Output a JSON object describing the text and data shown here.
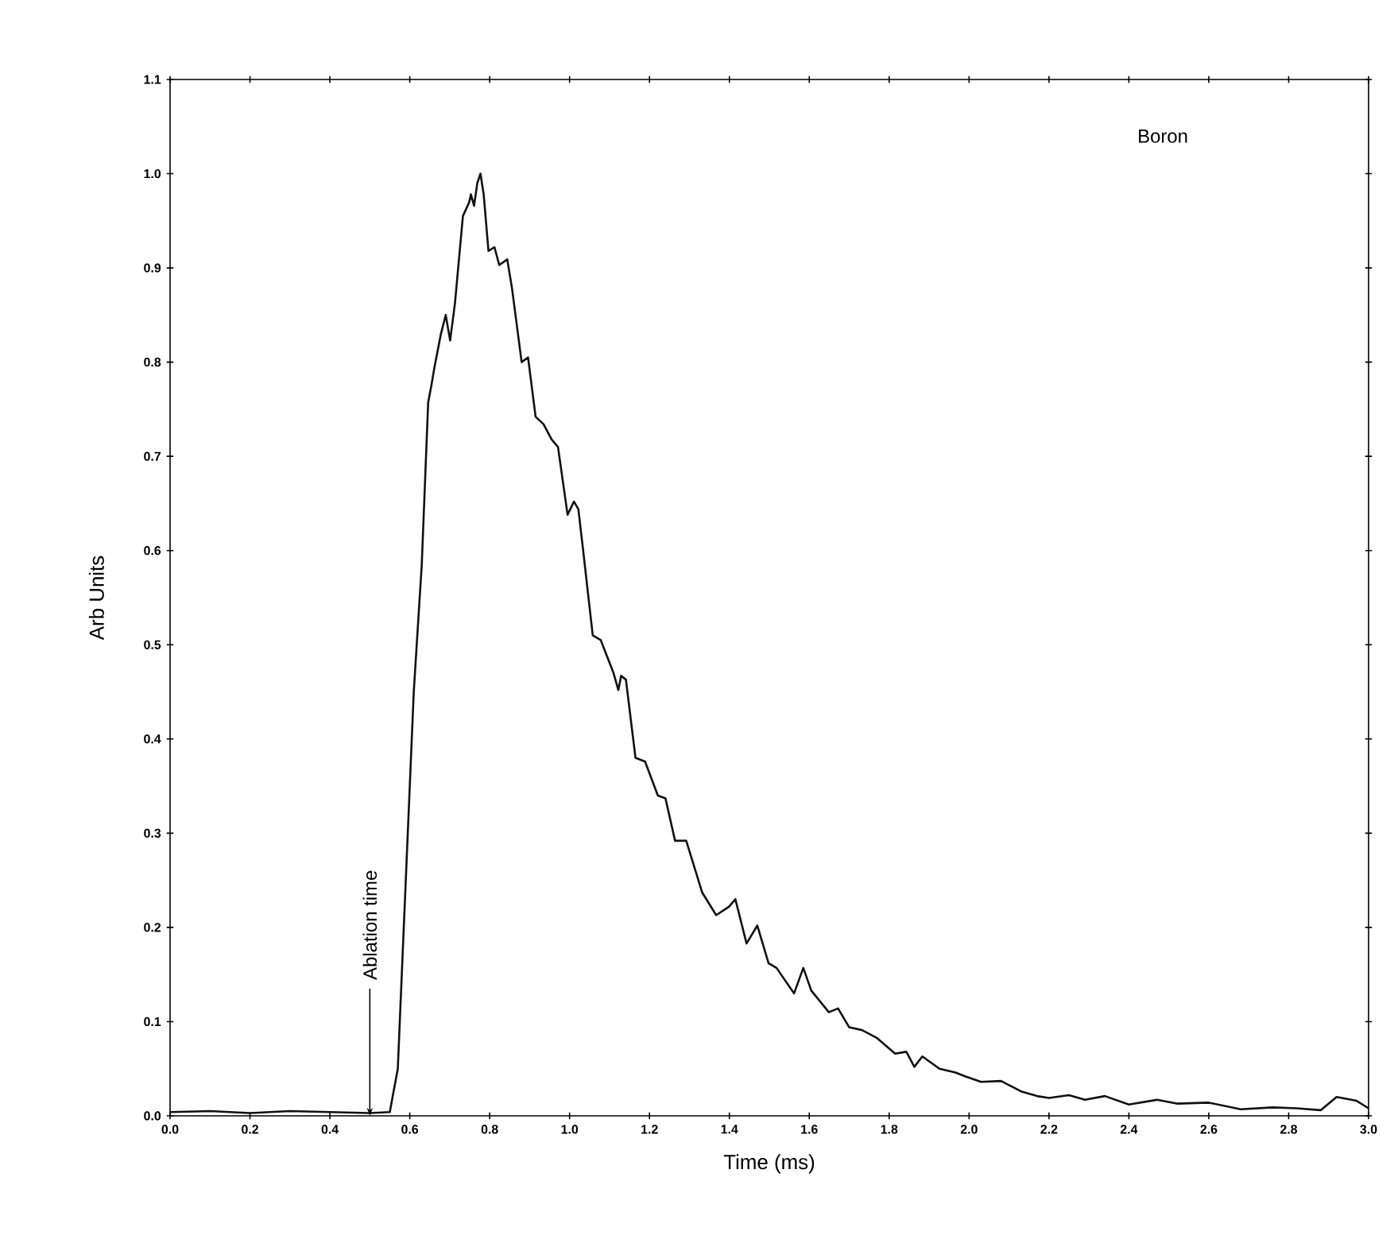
{
  "chart_data": {
    "type": "line",
    "xlabel": "Time (ms)",
    "ylabel": "Arb Units",
    "annotations": [
      "Boron",
      {
        "text": "Ablation time",
        "x": 0.5,
        "y": 0
      }
    ],
    "xlim": [
      0,
      3.0
    ],
    "ylim": [
      0,
      1.1
    ],
    "xticks": [
      {
        "value": 0,
        "label": "0.0"
      },
      0.2,
      0.4,
      0.6,
      0.8,
      {
        "value": 1,
        "label": "1.0"
      },
      1.2,
      1.4,
      1.6,
      1.8,
      {
        "value": 2,
        "label": "2.0"
      },
      2.2,
      2.4,
      2.6,
      2.8,
      {
        "value": 3,
        "label": "3.0"
      }
    ],
    "yticks": [
      {
        "value": 0,
        "label": "0.0"
      },
      0.1,
      0.2,
      0.3,
      0.4,
      0.5,
      0.6,
      0.7,
      0.8,
      0.9,
      {
        "value": 1,
        "label": "1.0"
      },
      1.1
    ],
    "marker": "none",
    "line_style": "solid",
    "series": [
      {
        "color": "#111111",
        "x": [
          0,
          0.1,
          0.2,
          0.3,
          0.4,
          0.5,
          0.55,
          0.57,
          0.59,
          0.61,
          0.63,
          0.646,
          0.654,
          0.662,
          0.678,
          0.69,
          0.701,
          0.713,
          0.733,
          0.749,
          0.753,
          0.761,
          0.769,
          0.777,
          0.785,
          0.797,
          0.812,
          0.824,
          0.844,
          0.856,
          0.88,
          0.896,
          0.915,
          0.935,
          0.955,
          0.971,
          0.995,
          1.011,
          1.022,
          1.034,
          1.058,
          1.078,
          1.11,
          1.122,
          1.129,
          1.141,
          1.165,
          1.189,
          1.221,
          1.24,
          1.264,
          1.292,
          1.332,
          1.367,
          1.399,
          1.415,
          1.443,
          1.47,
          1.498,
          1.518,
          1.562,
          1.585,
          1.605,
          1.649,
          1.672,
          1.7,
          1.732,
          1.768,
          1.815,
          1.843,
          1.863,
          1.883,
          1.926,
          1.966,
          1.99,
          2.03,
          2.08,
          2.13,
          2.17,
          2.2,
          2.25,
          2.29,
          2.34,
          2.4,
          2.47,
          2.52,
          2.6,
          2.68,
          2.76,
          2.82,
          2.88,
          2.92,
          2.97,
          3.0
        ],
        "values": [
          0.004,
          0.005,
          0.003,
          0.005,
          0.004,
          0.003,
          0.004,
          0.05,
          0.25,
          0.45,
          0.585,
          0.757,
          0.775,
          0.795,
          0.83,
          0.85,
          0.823,
          0.862,
          0.955,
          0.97,
          0.978,
          0.966,
          0.99,
          1.0,
          0.978,
          0.918,
          0.922,
          0.903,
          0.909,
          0.878,
          0.8,
          0.805,
          0.742,
          0.734,
          0.718,
          0.71,
          0.638,
          0.652,
          0.644,
          0.6,
          0.51,
          0.505,
          0.47,
          0.452,
          0.467,
          0.463,
          0.38,
          0.376,
          0.34,
          0.337,
          0.292,
          0.292,
          0.237,
          0.213,
          0.222,
          0.23,
          0.183,
          0.202,
          0.162,
          0.157,
          0.13,
          0.157,
          0.133,
          0.11,
          0.114,
          0.094,
          0.091,
          0.083,
          0.066,
          0.068,
          0.052,
          0.063,
          0.05,
          0.046,
          0.042,
          0.036,
          0.037,
          0.026,
          0.021,
          0.019,
          0.022,
          0.017,
          0.021,
          0.012,
          0.017,
          0.013,
          0.014,
          0.007,
          0.009,
          0.008,
          0.006,
          0.02,
          0.016,
          0.008
        ]
      }
    ]
  }
}
